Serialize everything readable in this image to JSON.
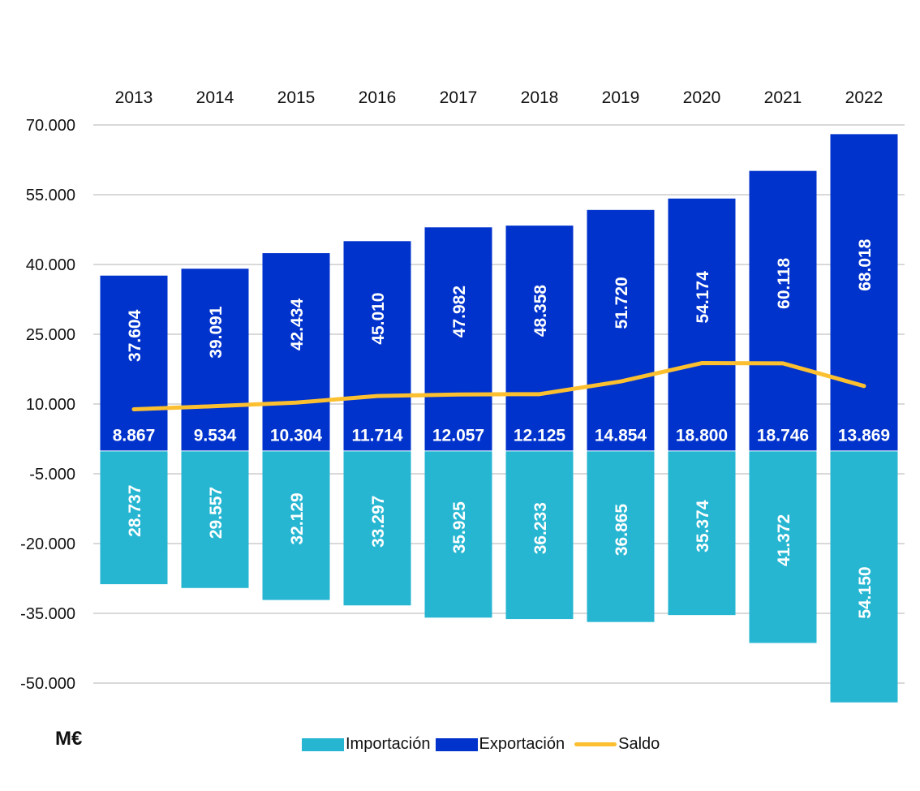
{
  "chart_data": {
    "type": "bar",
    "title": "",
    "unit_label": "M€",
    "xlabel": "",
    "ylabel": "",
    "categories": [
      "2013",
      "2014",
      "2015",
      "2016",
      "2017",
      "2018",
      "2019",
      "2020",
      "2021",
      "2022"
    ],
    "series": [
      {
        "name": "Importación",
        "kind": "bar",
        "sign": "negative",
        "color": "#27b6d2",
        "values": [
          28737,
          29557,
          32129,
          33297,
          35925,
          36233,
          36865,
          35374,
          41372,
          54150
        ],
        "labels": [
          "28.737",
          "29.557",
          "32.129",
          "33.297",
          "35.925",
          "36.233",
          "36.865",
          "35.374",
          "41.372",
          "54.150"
        ]
      },
      {
        "name": "Exportación",
        "kind": "bar",
        "sign": "positive",
        "color": "#0033cc",
        "values": [
          37604,
          39091,
          42434,
          45010,
          47982,
          48358,
          51720,
          54174,
          60118,
          68018
        ],
        "labels": [
          "37.604",
          "39.091",
          "42.434",
          "45.010",
          "47.982",
          "48.358",
          "51.720",
          "54.174",
          "60.118",
          "68.018"
        ]
      },
      {
        "name": "Saldo",
        "kind": "line",
        "color": "#fbbf2f",
        "values": [
          8867,
          9534,
          10304,
          11714,
          12057,
          12125,
          14854,
          18800,
          18746,
          13869
        ],
        "labels": [
          "8.867",
          "9.534",
          "10.304",
          "11.714",
          "12.057",
          "12.125",
          "14.854",
          "18.800",
          "18.746",
          "13.869"
        ]
      }
    ],
    "ylim": [
      -50000,
      70000
    ],
    "yticks": [
      70000,
      55000,
      40000,
      25000,
      10000,
      -5000,
      -20000,
      -35000,
      -50000
    ],
    "ytick_labels": [
      "70.000",
      "55.000",
      "40.000",
      "25.000",
      "10.000",
      "-5.000",
      "-20.000",
      "-35.000",
      "-50.000"
    ],
    "grid": true,
    "xaxis_position": "top",
    "legend_position": "bottom-center"
  },
  "legend": {
    "items": [
      "Importación",
      "Exportación",
      "Saldo"
    ]
  },
  "unit": "M€"
}
